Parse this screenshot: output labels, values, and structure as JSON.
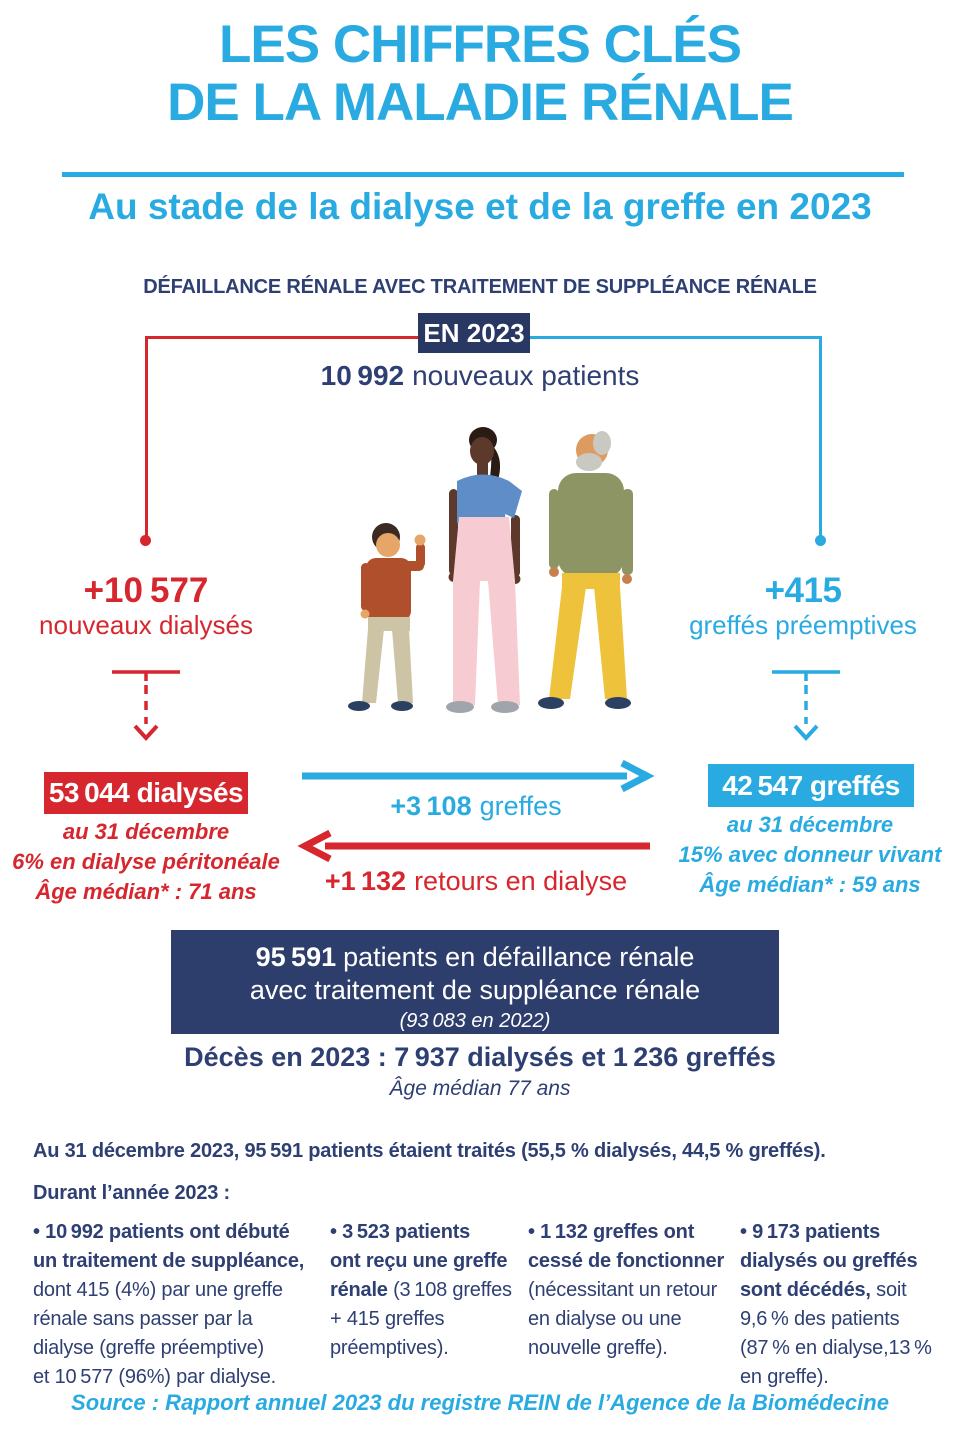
{
  "colors": {
    "accent_blue": "#29ABE2",
    "navy_box": "#2D3D6C",
    "navy_badge": "#283862",
    "text_navy": "#2E3F73",
    "red": "#D7272E",
    "white": "#FFFFFF"
  },
  "header": {
    "title_line1": "LES CHIFFRES CLÉS",
    "title_line2": "DE LA MALADIE RÉNALE",
    "subtitle": "Au stade de la dialyse et de la greffe en 2023",
    "section_heading": "DÉFAILLANCE RÉNALE AVEC TRAITEMENT DE SUPPLÉANCE RÉNALE",
    "year_badge": "EN 2023"
  },
  "diagram": {
    "new_patients": {
      "value": "10 992",
      "label": "nouveaux patients"
    },
    "illustration": {
      "figures": [
        "child",
        "woman",
        "elderly-man"
      ]
    },
    "left": {
      "inflow_value": "+10 577",
      "inflow_label": "nouveaux dialysés",
      "box_label": "53 044 dialysés",
      "caption": [
        "au 31 décembre",
        "6% en dialyse péritonéale",
        "Âge médian* : 71 ans"
      ]
    },
    "right": {
      "inflow_value": "+415",
      "inflow_label": "greffés préemptives",
      "box_label": "42 547 greffés",
      "caption": [
        "au 31 décembre",
        "15% avec donneur vivant",
        "Âge médian* : 59 ans"
      ]
    },
    "flows": {
      "grafts": {
        "value": "+3 108",
        "label": "greffes"
      },
      "returns": {
        "value": "+1 132",
        "label": "retours en dialyse"
      }
    },
    "total_box": {
      "value": "95 591",
      "line1_rest": "patients en défaillance rénale",
      "line2": "avec traitement de suppléance rénale",
      "line3": "(93 083 en 2022)"
    },
    "deaths_line": "Décès en 2023 : 7 937 dialysés et 1 236 greffés",
    "deaths_age": "Âge médian 77 ans"
  },
  "summary": {
    "intro": "Au 31 décembre 2023, 95 591 patients étaient traités (55,5 % dialysés, 44,5 % greffés).",
    "during": "Durant l’année 2023 :",
    "columns": [
      {
        "lines": [
          [
            {
              "t": "• 10 992 patients ont débuté",
              "b": true
            }
          ],
          [
            {
              "t": "un traitement de suppléance,",
              "b": true
            }
          ],
          [
            "dont 415 (4%) par une greffe"
          ],
          [
            "rénale sans passer par la"
          ],
          [
            "dialyse (greffe préemptive)"
          ],
          [
            "et 10 577 (96%) par dialyse."
          ]
        ]
      },
      {
        "lines": [
          [
            {
              "t": "• 3 523 patients",
              "b": true
            }
          ],
          [
            {
              "t": "ont reçu une greffe",
              "b": true
            }
          ],
          [
            {
              "t": "rénale ",
              "b": true
            },
            {
              "t": "(3 108 greffes",
              "b": false
            }
          ],
          [
            "+ 415 greffes"
          ],
          [
            "préemptives)."
          ]
        ]
      },
      {
        "lines": [
          [
            {
              "t": "• 1 132 greffes ont",
              "b": true
            }
          ],
          [
            {
              "t": "cessé de fonctionner",
              "b": true
            }
          ],
          [
            "(nécessitant un retour"
          ],
          [
            "en dialyse ou une"
          ],
          [
            "nouvelle greffe)."
          ]
        ]
      },
      {
        "lines": [
          [
            {
              "t": "• 9 173 patients",
              "b": true
            }
          ],
          [
            {
              "t": "dialysés ou greffés",
              "b": true
            }
          ],
          [
            {
              "t": "sont décédés,",
              "b": true
            },
            {
              "t": " soit",
              "b": false
            }
          ],
          [
            "9,6 % des patients"
          ],
          [
            "(87 % en dialyse,13 %"
          ],
          [
            "en greffe)."
          ]
        ]
      }
    ]
  },
  "source": "Source : Rapport annuel 2023 du registre REIN de l’Agence de la Biomédecine"
}
